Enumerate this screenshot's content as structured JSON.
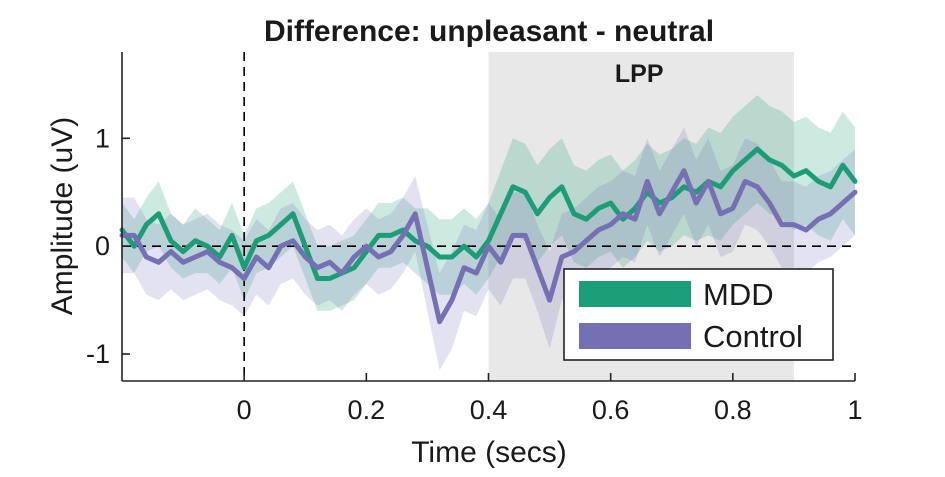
{
  "chart_data": {
    "type": "line",
    "title": "Difference: unpleasant - neutral",
    "xlabel": "Time (secs)",
    "ylabel": "Amplitude (uV)",
    "xlim": [
      -0.2,
      1.0
    ],
    "ylim": [
      -1.25,
      1.8
    ],
    "xticks": [
      0,
      0.2,
      0.4,
      0.6,
      0.8,
      1
    ],
    "xtick_labels": [
      "0",
      "0.2",
      "0.4",
      "0.6",
      "0.8",
      "1"
    ],
    "yticks": [
      -1,
      0,
      1
    ],
    "ytick_labels": [
      "-1",
      "0",
      "1"
    ],
    "grid": false,
    "legend_position": "bottom-right",
    "shaded_window": {
      "label": "LPP",
      "x_start": 0.4,
      "x_end": 0.9
    },
    "onset_line_x": 0,
    "zero_line_y": 0,
    "colors": {
      "MDD": "#1b9e77",
      "Control": "#7570b3",
      "window": "#e8e8e8"
    },
    "x": [
      -0.2,
      -0.18,
      -0.16,
      -0.14,
      -0.12,
      -0.1,
      -0.08,
      -0.06,
      -0.04,
      -0.02,
      0,
      0.02,
      0.04,
      0.06,
      0.08,
      0.1,
      0.12,
      0.14,
      0.16,
      0.18,
      0.2,
      0.22,
      0.24,
      0.26,
      0.28,
      0.3,
      0.32,
      0.34,
      0.36,
      0.38,
      0.4,
      0.42,
      0.44,
      0.46,
      0.48,
      0.5,
      0.52,
      0.54,
      0.56,
      0.58,
      0.6,
      0.62,
      0.64,
      0.66,
      0.68,
      0.7,
      0.72,
      0.74,
      0.76,
      0.78,
      0.8,
      0.82,
      0.84,
      0.86,
      0.88,
      0.9,
      0.92,
      0.94,
      0.96,
      0.98,
      1.0
    ],
    "series": [
      {
        "name": "MDD",
        "values": [
          0.15,
          0.0,
          0.2,
          0.3,
          0.05,
          -0.05,
          0.05,
          0.0,
          -0.1,
          0.1,
          -0.2,
          0.05,
          0.1,
          0.2,
          0.3,
          0.0,
          -0.3,
          -0.3,
          -0.25,
          -0.2,
          -0.05,
          0.1,
          0.1,
          0.15,
          0.05,
          0.0,
          -0.1,
          -0.1,
          0.0,
          -0.1,
          0.05,
          0.3,
          0.55,
          0.5,
          0.3,
          0.45,
          0.55,
          0.3,
          0.25,
          0.35,
          0.4,
          0.25,
          0.35,
          0.5,
          0.4,
          0.45,
          0.55,
          0.5,
          0.6,
          0.55,
          0.7,
          0.8,
          0.9,
          0.8,
          0.75,
          0.65,
          0.7,
          0.6,
          0.55,
          0.75,
          0.6
        ],
        "band_half_width": [
          0.25,
          0.25,
          0.25,
          0.3,
          0.25,
          0.25,
          0.3,
          0.25,
          0.25,
          0.3,
          0.3,
          0.3,
          0.3,
          0.3,
          0.3,
          0.3,
          0.3,
          0.3,
          0.3,
          0.3,
          0.3,
          0.3,
          0.3,
          0.3,
          0.3,
          0.35,
          0.35,
          0.35,
          0.35,
          0.35,
          0.35,
          0.4,
          0.45,
          0.45,
          0.45,
          0.45,
          0.45,
          0.45,
          0.45,
          0.45,
          0.45,
          0.45,
          0.45,
          0.45,
          0.45,
          0.45,
          0.45,
          0.45,
          0.5,
          0.5,
          0.5,
          0.5,
          0.5,
          0.5,
          0.5,
          0.5,
          0.5,
          0.5,
          0.5,
          0.5,
          0.5
        ]
      },
      {
        "name": "Control",
        "values": [
          0.1,
          0.1,
          -0.1,
          -0.15,
          -0.05,
          -0.15,
          -0.1,
          -0.05,
          -0.15,
          -0.2,
          -0.3,
          -0.1,
          -0.2,
          0.0,
          0.05,
          -0.1,
          -0.2,
          -0.15,
          -0.25,
          -0.1,
          0.0,
          -0.1,
          -0.05,
          0.1,
          0.3,
          -0.2,
          -0.7,
          -0.5,
          -0.2,
          -0.25,
          0.0,
          -0.15,
          0.1,
          0.1,
          -0.2,
          -0.5,
          -0.1,
          -0.05,
          0.05,
          0.15,
          0.2,
          0.3,
          0.25,
          0.6,
          0.3,
          0.5,
          0.7,
          0.4,
          0.6,
          0.3,
          0.35,
          0.6,
          0.55,
          0.4,
          0.2,
          0.2,
          0.15,
          0.25,
          0.3,
          0.4,
          0.5
        ],
        "band_half_width": [
          0.35,
          0.35,
          0.35,
          0.35,
          0.35,
          0.35,
          0.35,
          0.35,
          0.35,
          0.35,
          0.35,
          0.35,
          0.35,
          0.35,
          0.35,
          0.35,
          0.35,
          0.35,
          0.35,
          0.35,
          0.35,
          0.35,
          0.35,
          0.35,
          0.35,
          0.4,
          0.45,
          0.45,
          0.4,
          0.4,
          0.4,
          0.4,
          0.4,
          0.4,
          0.4,
          0.45,
          0.4,
          0.4,
          0.4,
          0.4,
          0.4,
          0.4,
          0.4,
          0.4,
          0.4,
          0.4,
          0.4,
          0.4,
          0.4,
          0.4,
          0.4,
          0.4,
          0.4,
          0.4,
          0.4,
          0.4,
          0.4,
          0.4,
          0.4,
          0.4,
          0.4
        ]
      }
    ]
  }
}
